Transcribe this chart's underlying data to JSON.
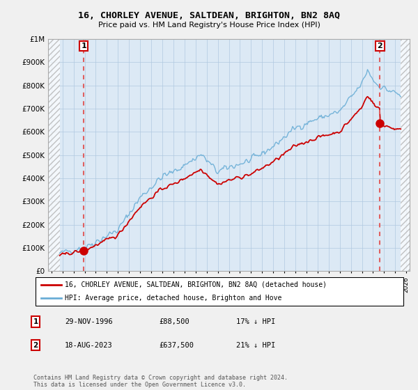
{
  "title": "16, CHORLEY AVENUE, SALTDEAN, BRIGHTON, BN2 8AQ",
  "subtitle": "Price paid vs. HM Land Registry's House Price Index (HPI)",
  "ylabel_ticks": [
    "£0",
    "£100K",
    "£200K",
    "£300K",
    "£400K",
    "£500K",
    "£600K",
    "£700K",
    "£800K",
    "£900K",
    "£1M"
  ],
  "ytick_values": [
    0,
    100000,
    200000,
    300000,
    400000,
    500000,
    600000,
    700000,
    800000,
    900000,
    1000000
  ],
  "ylim": [
    0,
    1000000
  ],
  "xlim_start": 1993.7,
  "xlim_end": 2026.3,
  "data_start": 1994.75,
  "data_end": 2025.5,
  "background_color": "#f0f0f0",
  "plot_bg_color": "#dce9f5",
  "hpi_color": "#6aaed6",
  "price_color": "#cc0000",
  "grid_color": "#b0c8e0",
  "sale1_x": 1996.91,
  "sale1_y": 88500,
  "sale2_x": 2023.63,
  "sale2_y": 637500,
  "legend_line1": "16, CHORLEY AVENUE, SALTDEAN, BRIGHTON, BN2 8AQ (detached house)",
  "legend_line2": "HPI: Average price, detached house, Brighton and Hove",
  "table_row1_num": "1",
  "table_row1_date": "29-NOV-1996",
  "table_row1_price": "£88,500",
  "table_row1_hpi": "17% ↓ HPI",
  "table_row2_num": "2",
  "table_row2_date": "18-AUG-2023",
  "table_row2_price": "£637,500",
  "table_row2_hpi": "21% ↓ HPI",
  "footer": "Contains HM Land Registry data © Crown copyright and database right 2024.\nThis data is licensed under the Open Government Licence v3.0.",
  "hatch_color": "#d8d8d8",
  "vline_color": "#e06060"
}
